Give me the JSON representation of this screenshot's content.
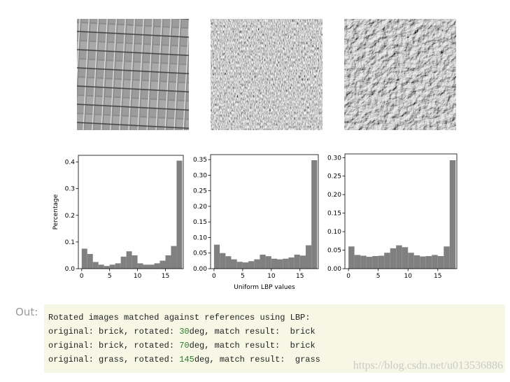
{
  "chart_data": [
    {
      "type": "histogram",
      "ylabel": "Percentage",
      "bins": [
        0,
        1,
        2,
        3,
        4,
        5,
        6,
        7,
        8,
        9,
        10,
        11,
        12,
        13,
        14,
        15,
        16,
        17,
        18
      ],
      "values": [
        0.075,
        0.055,
        0.025,
        0.015,
        0.01,
        0.015,
        0.02,
        0.045,
        0.065,
        0.05,
        0.02,
        0.015,
        0.015,
        0.02,
        0.03,
        0.05,
        0.085,
        0.405
      ],
      "color": "#808080",
      "xlim": [
        -0.6,
        18.2
      ],
      "ylim": [
        0,
        0.425
      ],
      "xticks": [
        0,
        5,
        10,
        15
      ],
      "yticks": [
        {
          "value": 0,
          "label": "0.0"
        },
        0.1,
        0.2,
        0.3,
        0.4
      ]
    },
    {
      "type": "histogram",
      "xlabel": "Uniform LBP values",
      "bins": [
        0,
        1,
        2,
        3,
        4,
        5,
        6,
        7,
        8,
        9,
        10,
        11,
        12,
        13,
        14,
        15,
        16,
        17,
        18
      ],
      "values": [
        0.077,
        0.05,
        0.04,
        0.03,
        0.022,
        0.02,
        0.024,
        0.03,
        0.045,
        0.04,
        0.032,
        0.03,
        0.032,
        0.036,
        0.045,
        0.042,
        0.075,
        0.348
      ],
      "color": "#808080",
      "xlim": [
        -0.6,
        18.2
      ],
      "ylim": [
        0,
        0.366
      ],
      "xticks": [
        0,
        5,
        10,
        15
      ],
      "yticks": [
        {
          "value": 0,
          "label": "0.00"
        },
        0.05,
        {
          "value": 0.1,
          "label": "0.10"
        },
        0.15,
        {
          "value": 0.2,
          "label": "0.20"
        },
        0.25,
        {
          "value": 0.3,
          "label": "0.30"
        },
        0.35
      ]
    },
    {
      "type": "histogram",
      "bins": [
        0,
        1,
        2,
        3,
        4,
        5,
        6,
        7,
        8,
        9,
        10,
        11,
        12,
        13,
        14,
        15,
        16,
        17,
        18
      ],
      "values": [
        0.06,
        0.037,
        0.035,
        0.032,
        0.034,
        0.035,
        0.043,
        0.055,
        0.063,
        0.058,
        0.043,
        0.036,
        0.033,
        0.034,
        0.037,
        0.034,
        0.06,
        0.293
      ],
      "color": "#808080",
      "xlim": [
        -0.6,
        18.2
      ],
      "ylim": [
        0,
        0.31
      ],
      "xticks": [
        0,
        5,
        10,
        15
      ],
      "yticks": [
        {
          "value": 0,
          "label": "0.00"
        },
        0.05,
        {
          "value": 0.1,
          "label": "0.10"
        },
        0.15,
        {
          "value": 0.2,
          "label": "0.20"
        },
        0.25,
        {
          "value": 0.3,
          "label": "0.30"
        }
      ]
    }
  ],
  "output": {
    "prompt": "Out:",
    "header": "Rotated images matched against references using LBP:",
    "lines": [
      [
        "original: brick, rotated: ",
        "30",
        "deg, match result:  brick"
      ],
      [
        "original: brick, rotated: ",
        "70",
        "deg, match result:  brick"
      ],
      [
        "original: grass, rotated: ",
        "145",
        "deg, match result:  grass"
      ]
    ]
  },
  "watermark": "https://blog.csdn.net/u013536886"
}
